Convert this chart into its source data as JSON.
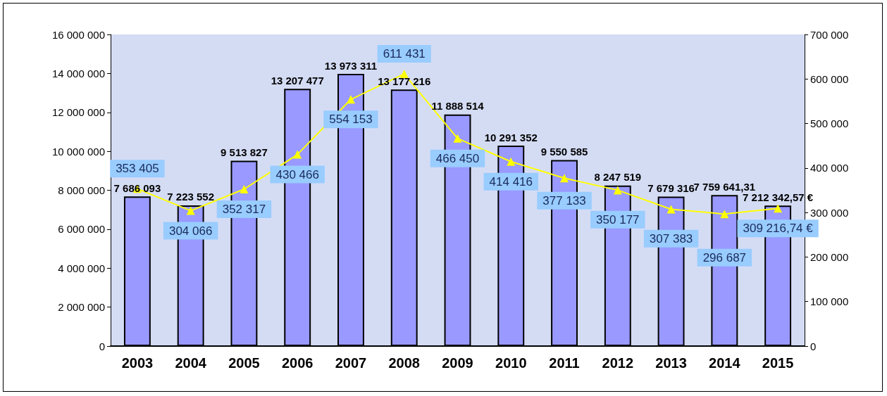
{
  "chart_data": {
    "type": "bar",
    "categories": [
      "2003",
      "2004",
      "2005",
      "2006",
      "2007",
      "2008",
      "2009",
      "2010",
      "2011",
      "2012",
      "2013",
      "2014",
      "2015"
    ],
    "series": [
      {
        "color": "#9999ff",
        "values": [
          7686093,
          7223552,
          9513827,
          13207477,
          13973311,
          13177216,
          11888514,
          10291352,
          9550585,
          8247519,
          7679316,
          7759641.31,
          7212342.57
        ],
        "value_labels": [
          "7 686 093",
          "7 223 552",
          "9 513 827",
          "13 207 477",
          "13 973 311",
          "13 177 216",
          "11 888 514",
          "10 291 352",
          "9 550 585",
          "8 247 519",
          "7 679 316",
          "7 759 641,31",
          "7 212 342,57 €"
        ]
      },
      {
        "type": "line",
        "axis": "y2",
        "color": "#ffff00",
        "marker": "triangle",
        "values": [
          353405,
          304066,
          352317,
          430466,
          554153,
          611431,
          466450,
          414416,
          377133,
          350177,
          307383,
          296687,
          309216.74
        ],
        "value_labels": [
          "353 405",
          "304 066",
          "352 317",
          "430 466",
          "554 153",
          "611 431",
          "466 450",
          "414 416",
          "377 133",
          "350 177",
          "307 383",
          "296 687",
          "309 216,74 €"
        ]
      }
    ],
    "ylim": [
      0,
      16000000
    ],
    "yticks": [
      {
        "value": 0,
        "label": "0"
      },
      {
        "value": 2000000,
        "label": "2 000 000"
      },
      {
        "value": 4000000,
        "label": "4 000 000"
      },
      {
        "value": 6000000,
        "label": "6 000 000"
      },
      {
        "value": 8000000,
        "label": "8 000 000"
      },
      {
        "value": 10000000,
        "label": "10 000 000"
      },
      {
        "value": 12000000,
        "label": "12 000 000"
      },
      {
        "value": 14000000,
        "label": "14 000 000"
      },
      {
        "value": 16000000,
        "label": "16 000 000"
      }
    ],
    "y2lim": [
      0,
      700000
    ],
    "y2ticks": [
      {
        "value": 0,
        "label": "0"
      },
      {
        "value": 100000,
        "label": "100 000"
      },
      {
        "value": 200000,
        "label": "200 000"
      },
      {
        "value": 300000,
        "label": "300 000"
      },
      {
        "value": 400000,
        "label": "400 000"
      },
      {
        "value": 500000,
        "label": "500 000"
      },
      {
        "value": 600000,
        "label": "600 000"
      },
      {
        "value": 700000,
        "label": "700 000"
      }
    ],
    "grid": false
  }
}
